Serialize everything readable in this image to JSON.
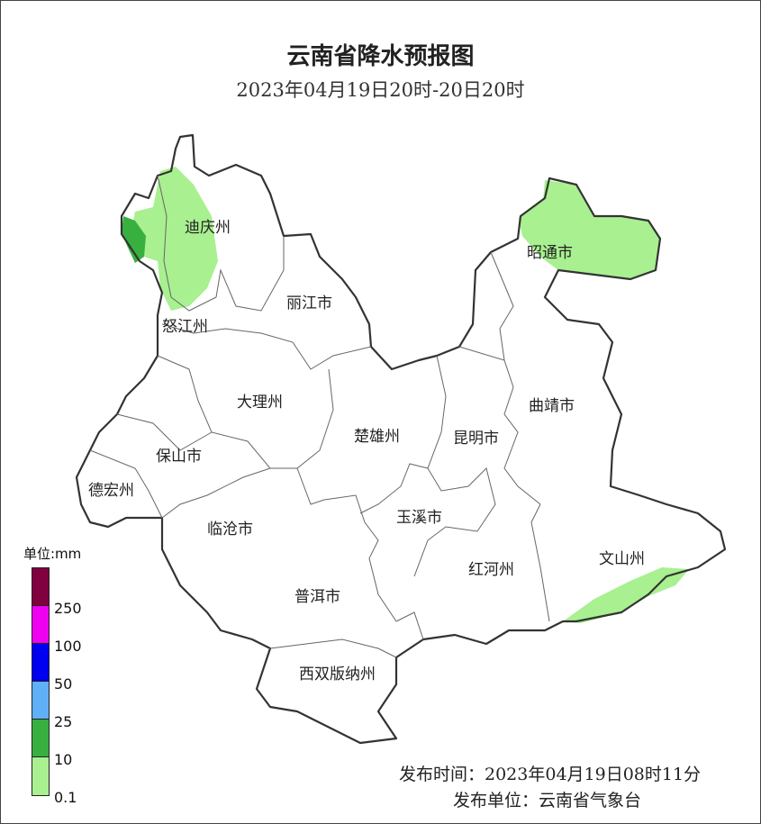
{
  "title": "云南省降水预报图",
  "subtitle": "2023年04月19日20时-20日20时",
  "regions": [
    {
      "name": "迪庆州",
      "rain": "0.1-10"
    },
    {
      "name": "怒江州",
      "rain": "0.1-25"
    },
    {
      "name": "丽江市",
      "rain": "none"
    },
    {
      "name": "昭通市",
      "rain": "0.1-10"
    },
    {
      "name": "大理州",
      "rain": "none"
    },
    {
      "name": "曲靖市",
      "rain": "none"
    },
    {
      "name": "楚雄州",
      "rain": "none"
    },
    {
      "name": "昆明市",
      "rain": "none"
    },
    {
      "name": "保山市",
      "rain": "none"
    },
    {
      "name": "德宏州",
      "rain": "none"
    },
    {
      "name": "玉溪市",
      "rain": "none"
    },
    {
      "name": "临沧市",
      "rain": "none"
    },
    {
      "name": "文山州",
      "rain": "0.1-10"
    },
    {
      "name": "红河州",
      "rain": "none"
    },
    {
      "name": "普洱市",
      "rain": "none"
    },
    {
      "name": "西双版纳州",
      "rain": "none"
    }
  ],
  "legend": {
    "unit": "单位:mm",
    "bins": [
      {
        "color": "#800040"
      },
      {
        "color": "#f000f0",
        "label": "250"
      },
      {
        "color": "#0000f0",
        "label": "100"
      },
      {
        "color": "#60b0f8",
        "label": "50"
      },
      {
        "color": "#38b040",
        "label": "25"
      },
      {
        "color": "#a8f090",
        "label": "10"
      }
    ],
    "bottom_label": "0.1"
  },
  "footer": {
    "time": "发布时间：2023年04月19日08时11分",
    "unit": "发布单位：云南省气象台"
  }
}
